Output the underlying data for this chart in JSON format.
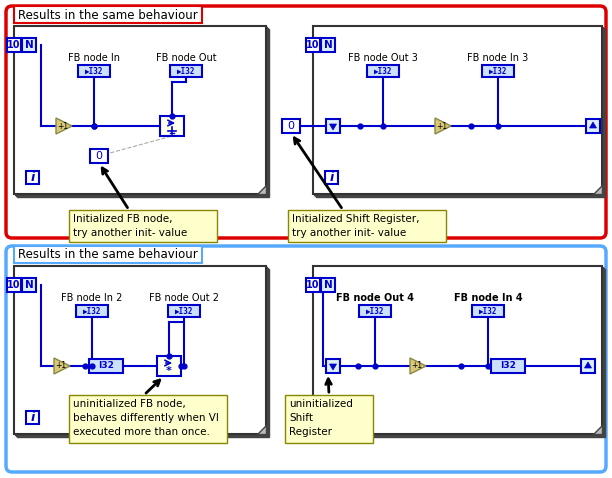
{
  "bg_color": "#ffffff",
  "red_box_color": "#dd0000",
  "blue_box_color": "#55aaff",
  "blue": "#0000cc",
  "wire": "#0000cc",
  "note_bg": "#ffffcc",
  "label_top_red": "Results in the same behaviour",
  "label_top_blue": "Results in the same behaviour",
  "panel1_title_in": "FB node In",
  "panel1_title_out": "FB node Out",
  "panel2_title_out": "FB node Out 3",
  "panel2_title_in": "FB node In 3",
  "panel3_title_in": "FB node In 2",
  "panel3_title_out": "FB node Out 2",
  "panel4_title_out": "FB node Out 4",
  "panel4_title_in": "FB node In 4",
  "note1": "Initialized FB node,\ntry another init- value",
  "note2": "Initialized Shift Register,\ntry another init- value",
  "note3": "uninitialized FB node,\nbehaves differently when VI\nexecuted more than once.",
  "note4": "uninitialized\nShift\nRegister"
}
